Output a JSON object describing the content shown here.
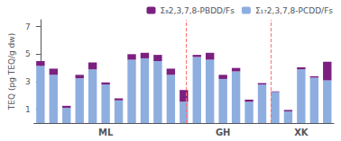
{
  "chart_data": {
    "type": "bar",
    "title": "",
    "ylabel": "TEQ (pg TEQ/g dw)",
    "categories": [
      null,
      null,
      null,
      null,
      null,
      "ML",
      null,
      null,
      null,
      null,
      null,
      null,
      null,
      null,
      "GH",
      null,
      null,
      null,
      null,
      null,
      "XK",
      null,
      null
    ],
    "series": [
      {
        "name": "Σ₁₇2,3,7,8-PCDD/Fs",
        "color": "#8eaee0",
        "values": [
          4.15,
          3.5,
          1.1,
          3.25,
          3.9,
          2.8,
          1.65,
          4.6,
          4.7,
          4.5,
          3.5,
          1.55,
          4.8,
          4.6,
          3.2,
          3.75,
          1.55,
          2.8,
          2.25,
          0.85,
          3.9,
          3.3,
          3.1
        ]
      },
      {
        "name": "Σ₈2,3,7,8-PBDD/Fs",
        "color": "#7b2080",
        "values": [
          0.35,
          0.45,
          0.15,
          0.25,
          0.5,
          0.15,
          0.15,
          0.4,
          0.4,
          0.45,
          0.45,
          0.85,
          0.15,
          0.5,
          0.3,
          0.25,
          0.15,
          0.1,
          0.05,
          0.1,
          0.15,
          0.1,
          1.35
        ]
      }
    ],
    "stacked": true,
    "vlines": {
      "x": [
        11.1812,
        17.68175
      ],
      "color": "#ff7070",
      "line_style": "dashed"
    },
    "ylim": [
      0,
      7.5
    ],
    "yticks": [
      1,
      3,
      5,
      7
    ],
    "grid": false,
    "legend": "upper right"
  }
}
